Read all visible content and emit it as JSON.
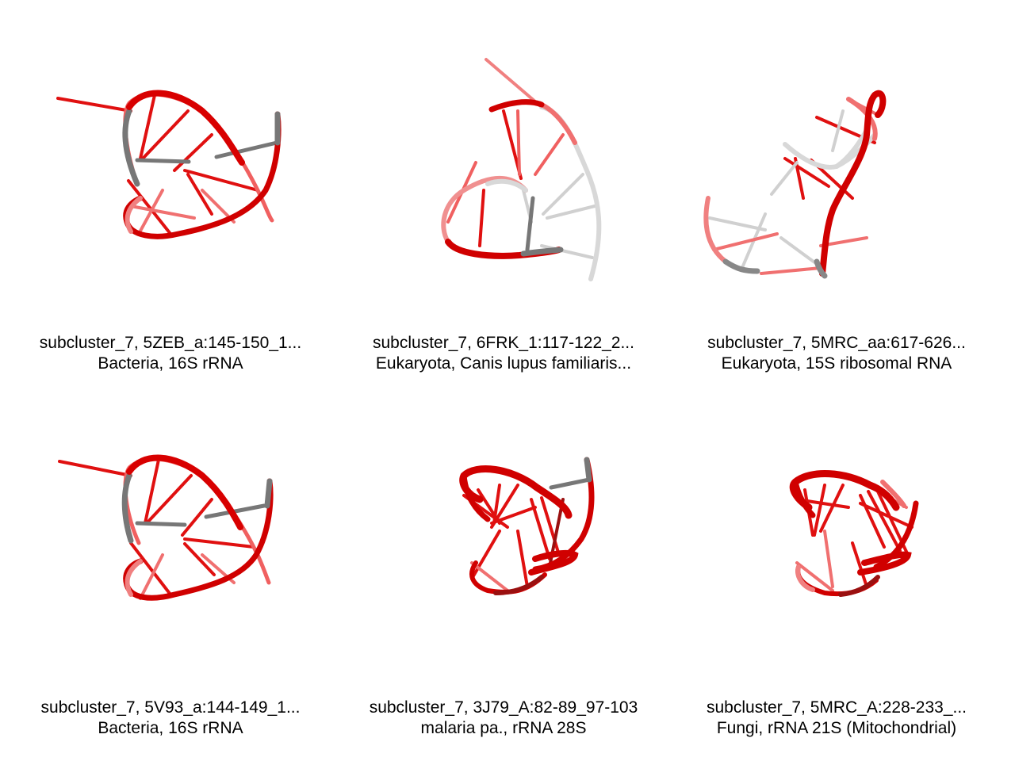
{
  "colors": {
    "backbone_red": "#e00000",
    "rung_red": "#ee1111",
    "faded_red": "#f08080",
    "gray": "#777777",
    "light_gray": "#cfcfcf",
    "dark_red": "#9a0d0d"
  },
  "panels": [
    {
      "line1": "subcluster_7, 5ZEB_a:145-150_1...",
      "line2": "Bacteria, 16S rRNA",
      "image": "rna-structure-render"
    },
    {
      "line1": "subcluster_7, 6FRK_1:117-122_2...",
      "line2": "Eukaryota, Canis lupus familiaris...",
      "image": "rna-structure-render"
    },
    {
      "line1": "subcluster_7, 5MRC_aa:617-626...",
      "line2": "Eukaryota, 15S ribosomal RNA",
      "image": "rna-structure-render"
    },
    {
      "line1": "subcluster_7, 5V93_a:144-149_1...",
      "line2": "Bacteria, 16S rRNA",
      "image": "rna-structure-render"
    },
    {
      "line1": "subcluster_7, 3J79_A:82-89_97-103",
      "line2": "malaria pa., rRNA 28S",
      "image": "rna-structure-render"
    },
    {
      "line1": "subcluster_7, 5MRC_A:228-233_...",
      "line2": "Fungi, rRNA 21S (Mitochondrial)",
      "image": "rna-structure-render"
    }
  ]
}
